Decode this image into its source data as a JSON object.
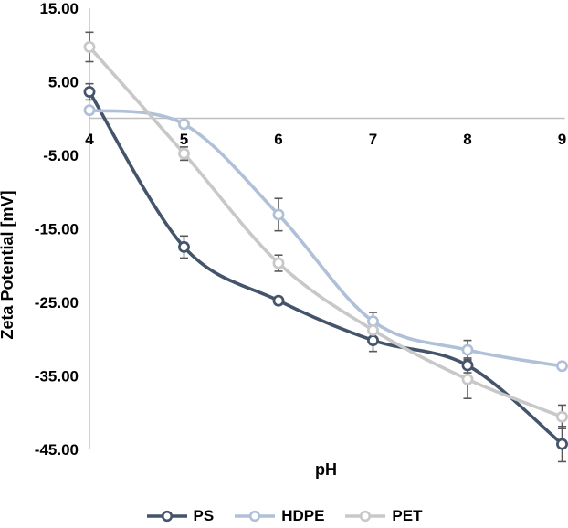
{
  "chart_data": {
    "type": "line",
    "title": "",
    "xlabel": "pH",
    "ylabel": "Zeta Potential [mV]",
    "x": [
      4,
      5,
      6,
      7,
      8,
      9
    ],
    "xtick_labels": [
      "4",
      "5",
      "6",
      "7",
      "8",
      "9"
    ],
    "ytick_values": [
      15,
      5,
      -5,
      -15,
      -25,
      -35,
      -45
    ],
    "ytick_labels": [
      "15.00",
      "5.00",
      "-5.00",
      "-15.00",
      "-25.00",
      "-35.00",
      "-45.00"
    ],
    "xlim": [
      4,
      9
    ],
    "ylim": [
      -45,
      15
    ],
    "grid": false,
    "line_style": "smooth",
    "marker": "open-circle",
    "legend_position": "bottom",
    "colors": {
      "axis": "#BFBFBF",
      "error_bar": "#595959",
      "text": "#000000",
      "background": "#FFFFFF"
    },
    "series": [
      {
        "name": "PS",
        "color": "#44546A",
        "values": [
          3.6,
          -17.5,
          -24.8,
          -30.2,
          -33.6,
          -44.3
        ],
        "errors": [
          1.1,
          1.5,
          0.5,
          1.5,
          1.0,
          2.4
        ]
      },
      {
        "name": "HDPE",
        "color": "#B0C0D8",
        "values": [
          1.1,
          -0.8,
          -13.1,
          -27.6,
          -31.5,
          -33.7
        ],
        "errors": [
          0.4,
          0.4,
          2.2,
          1.2,
          1.3,
          0.4
        ]
      },
      {
        "name": "PET",
        "color": "#C8C8C8",
        "values": [
          9.7,
          -4.8,
          -19.7,
          -28.8,
          -35.5,
          -40.6
        ],
        "errors": [
          2.0,
          0.9,
          1.1,
          1.0,
          2.6,
          1.6
        ]
      }
    ]
  }
}
